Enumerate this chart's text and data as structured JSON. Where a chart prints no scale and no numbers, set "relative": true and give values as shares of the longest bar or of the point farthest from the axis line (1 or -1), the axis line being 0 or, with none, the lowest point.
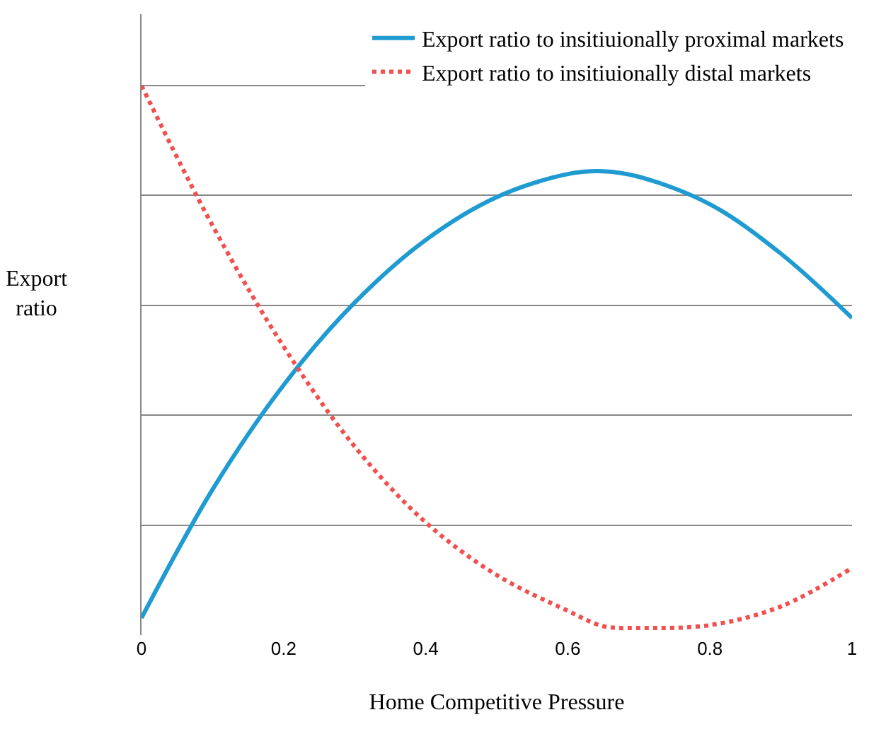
{
  "chart_data": {
    "type": "line",
    "relative": true,
    "xlabel": "Home Competitive Pressure",
    "ylabel": "Export ratio",
    "x": [
      0,
      0.1,
      0.2,
      0.3,
      0.4,
      0.5,
      0.6,
      0.65,
      0.7,
      0.8,
      0.9,
      1
    ],
    "series": [
      {
        "name": "Export ratio to insitiuionally proximal markets",
        "color": "#1f9bd1",
        "line_style": "solid",
        "values": [
          0.031,
          0.265,
          0.455,
          0.605,
          0.719,
          0.797,
          0.839,
          0.844,
          0.834,
          0.784,
          0.694,
          0.577
        ]
      },
      {
        "name": "Export ratio to insitiuionally distal markets",
        "color": "#f0504f",
        "line_style": "dotted",
        "values": [
          1,
          0.745,
          0.525,
          0.343,
          0.205,
          0.109,
          0.044,
          0.016,
          0.013,
          0.018,
          0.052,
          0.122
        ]
      }
    ],
    "xlim": [
      0,
      1
    ],
    "xticks": [
      0,
      0.2,
      0.4,
      0.6,
      0.8,
      1
    ],
    "grid": "y",
    "legend": "top right",
    "marker": "none"
  }
}
